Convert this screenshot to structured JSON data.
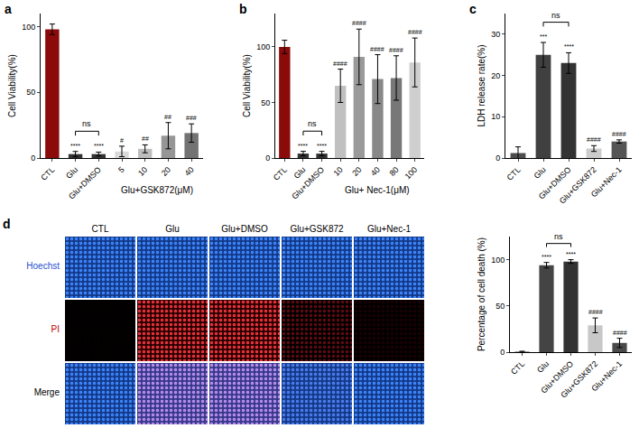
{
  "chart_data": [
    {
      "type": "bar",
      "panel": "a",
      "ylabel": "Cell Viability(%)",
      "categories": [
        "CTL",
        "Glu",
        "Glu+DMSO",
        "5",
        "10",
        "20",
        "40"
      ],
      "values": [
        98,
        3,
        3,
        5,
        7,
        17,
        19
      ],
      "errors": [
        4,
        2,
        1.5,
        4,
        3,
        10,
        7
      ],
      "colors": [
        "#8b0a0a",
        "#333333",
        "#333333",
        "#d9d9d9",
        "#bdbdbd",
        "#969696",
        "#737373"
      ],
      "ylim": [
        0,
        110
      ],
      "yticks": [
        0,
        50,
        100
      ],
      "grid": false,
      "group": {
        "label": "Glu+GSK872(μM)",
        "categories": [
          "5",
          "10",
          "20",
          "40"
        ]
      },
      "annotations": [
        {
          "category": "Glu",
          "text": "****"
        },
        {
          "category": "Glu+DMSO",
          "text": "****"
        },
        {
          "category": "5",
          "text": "#"
        },
        {
          "category": "10",
          "text": "##"
        },
        {
          "category": "20",
          "text": "##"
        },
        {
          "category": "40",
          "text": "###"
        }
      ],
      "brackets": [
        {
          "from": "Glu",
          "to": "Glu+DMSO",
          "text": "ns"
        }
      ]
    },
    {
      "type": "bar",
      "panel": "b",
      "ylabel": "Cell Viability(%)",
      "categories": [
        "CTL",
        "Glu",
        "Glu+DMSO",
        "10",
        "20",
        "40",
        "80",
        "100"
      ],
      "values": [
        100,
        4,
        4,
        65,
        91,
        71,
        72,
        86
      ],
      "errors": [
        6,
        2,
        2,
        15,
        25,
        22,
        20,
        22
      ],
      "colors": [
        "#8b0a0a",
        "#333333",
        "#333333",
        "#c0c0c0",
        "#9a9a9a",
        "#888888",
        "#777777",
        "#cfcfcf"
      ],
      "ylim": [
        0,
        130
      ],
      "yticks": [
        0,
        50,
        100
      ],
      "grid": false,
      "group": {
        "label": "Glu+ Nec-1(μM)",
        "categories": [
          "10",
          "20",
          "40",
          "80",
          "100"
        ]
      },
      "annotations": [
        {
          "category": "Glu",
          "text": "****"
        },
        {
          "category": "Glu+DMSO",
          "text": "****"
        },
        {
          "category": "10",
          "text": "####"
        },
        {
          "category": "20",
          "text": "####"
        },
        {
          "category": "40",
          "text": "####"
        },
        {
          "category": "80",
          "text": "####"
        },
        {
          "category": "100",
          "text": "####"
        }
      ],
      "brackets": [
        {
          "from": "Glu",
          "to": "Glu+DMSO",
          "text": "ns"
        }
      ]
    },
    {
      "type": "bar",
      "panel": "c",
      "ylabel": "LDH release rate(%)",
      "categories": [
        "CTL",
        "Glu",
        "Glu+DMSO",
        "Glu+GSK872",
        "Glu+Nec-1"
      ],
      "values": [
        1.2,
        25,
        23,
        2.3,
        4
      ],
      "errors": [
        1.5,
        3,
        2.5,
        0.7,
        0.4
      ],
      "colors": [
        "#4d4d4d",
        "#404040",
        "#333333",
        "#cccccc",
        "#555555"
      ],
      "ylim": [
        0,
        35
      ],
      "yticks": [
        0,
        10,
        20,
        30
      ],
      "grid": false,
      "annotations": [
        {
          "category": "Glu",
          "text": "***"
        },
        {
          "category": "Glu+DMSO",
          "text": "****"
        },
        {
          "category": "Glu+GSK872",
          "text": "####"
        },
        {
          "category": "Glu+Nec-1",
          "text": "####"
        }
      ],
      "brackets": [
        {
          "from": "Glu",
          "to": "Glu+DMSO",
          "text": "ns"
        }
      ]
    },
    {
      "type": "bar",
      "ylabel": "Percentage of cell death (%)",
      "categories": [
        "CTL",
        "Glu",
        "Glu+DMSO",
        "Glu+GSK872",
        "Glu+Nec-1"
      ],
      "values": [
        0.5,
        94,
        98,
        29,
        10
      ],
      "errors": [
        0.5,
        3,
        2,
        8,
        5
      ],
      "colors": [
        "#444444",
        "#444444",
        "#333333",
        "#c8c8c8",
        "#4a4a4a"
      ],
      "ylim": [
        0,
        125
      ],
      "yticks": [
        0,
        50,
        100
      ],
      "grid": false,
      "annotations": [
        {
          "category": "Glu",
          "text": "****"
        },
        {
          "category": "Glu+DMSO",
          "text": "****"
        },
        {
          "category": "Glu+GSK872",
          "text": "####"
        },
        {
          "category": "Glu+Nec-1",
          "text": "####"
        }
      ],
      "brackets": [
        {
          "from": "Glu",
          "to": "Glu+DMSO",
          "text": "ns"
        }
      ]
    }
  ],
  "micrographs": {
    "panel": "d",
    "columns": [
      "CTL",
      "Glu",
      "Glu+DMSO",
      "Glu+GSK872",
      "Glu+Nec-1"
    ],
    "rows": [
      "Hoechst",
      "PI",
      "Merge"
    ]
  }
}
